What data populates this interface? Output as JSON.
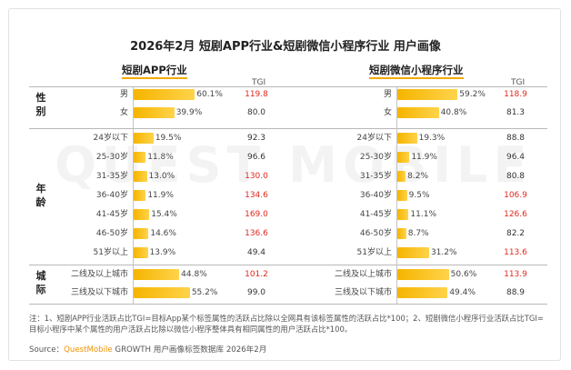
{
  "page": {
    "title": "2026年2月 短剧APP行业&短剧微信小程序行业 用户画像",
    "tgi_header": "TGI",
    "watermark": "QUEST MOBILE",
    "note": "注：1、短剧APP行业活跃占比TGI=目标App某个标签属性的活跃占比除以全网具有该标签属性的活跃占比*100；2、短剧微信小程序行业活跃占比TGI=目标小程序中某个属性的用户活跃占比除以微信小程序整体具有相同属性的用户活跃占比*100。",
    "source_prefix": "Source：",
    "source_brand": "QuestMobile",
    "source_rest": " GROWTH 用户画像标签数据库 2026年2月"
  },
  "groups": [
    {
      "label": "性别"
    },
    {
      "label": "年龄"
    },
    {
      "label": "城际"
    }
  ],
  "chart_data": [
    {
      "type": "bar",
      "title": "短剧APP行业",
      "categories": [
        "男",
        "女",
        "24岁以下",
        "25-30岁",
        "31-35岁",
        "36-40岁",
        "41-45岁",
        "46-50岁",
        "51岁以上",
        "二线及以上城市",
        "三线及以下城市"
      ],
      "values": [
        60.1,
        39.9,
        19.5,
        11.8,
        13.0,
        11.9,
        15.4,
        14.6,
        13.9,
        44.8,
        55.2
      ],
      "labels": [
        "60.1%",
        "39.9%",
        "19.5%",
        "11.8%",
        "13.0%",
        "11.9%",
        "15.4%",
        "14.6%",
        "13.9%",
        "44.8%",
        "55.2%"
      ],
      "tgi": [
        "119.8",
        "80.0",
        "92.3",
        "96.6",
        "130.0",
        "134.6",
        "169.0",
        "136.6",
        "49.4",
        "101.2",
        "99.0"
      ],
      "tgi_values": [
        119.8,
        80.0,
        92.3,
        96.6,
        130.0,
        134.6,
        169.0,
        136.6,
        49.4,
        101.2,
        99.0
      ],
      "unit": "%"
    },
    {
      "type": "bar",
      "title": "短剧微信小程序行业",
      "categories": [
        "男",
        "女",
        "24岁以下",
        "25-30岁",
        "31-35岁",
        "36-40岁",
        "41-45岁",
        "46-50岁",
        "51岁以上",
        "二线及以上城市",
        "三线及以下城市"
      ],
      "values": [
        59.2,
        40.8,
        19.3,
        11.9,
        8.2,
        9.5,
        11.1,
        8.7,
        31.2,
        50.6,
        49.4
      ],
      "labels": [
        "59.2%",
        "40.8%",
        "19.3%",
        "11.9%",
        "8.2%",
        "9.5%",
        "11.1%",
        "8.7%",
        "31.2%",
        "50.6%",
        "49.4%"
      ],
      "tgi": [
        "118.9",
        "81.3",
        "88.8",
        "96.4",
        "80.8",
        "106.9",
        "126.6",
        "82.2",
        "113.6",
        "113.9",
        "88.9"
      ],
      "tgi_values": [
        118.9,
        81.3,
        88.8,
        96.4,
        80.8,
        106.9,
        126.6,
        82.2,
        113.6,
        113.9,
        88.9
      ],
      "unit": "%"
    }
  ]
}
